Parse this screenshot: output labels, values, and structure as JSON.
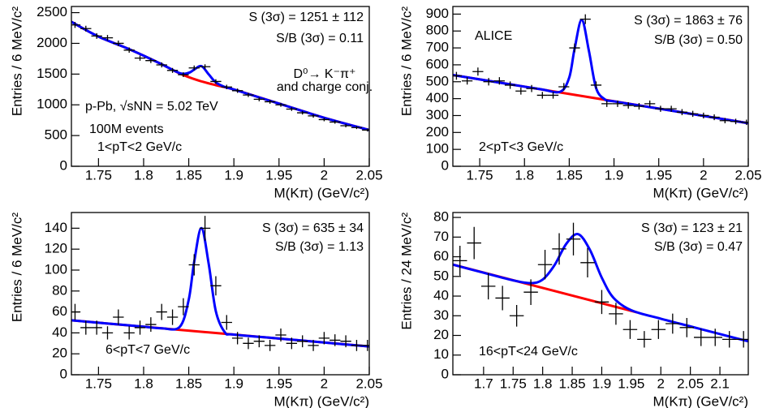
{
  "chart_data": [
    {
      "type": "errorbar",
      "xlabel": "M(Kπ) (GeV/c²)",
      "ylabel": "Entries / 6 MeV/c²",
      "xlim": [
        1.72,
        2.05
      ],
      "xticks": [
        1.75,
        1.8,
        1.85,
        1.9,
        1.95,
        2,
        2.05
      ],
      "ylim": [
        0,
        2600
      ],
      "yticks": [
        0,
        500,
        1000,
        1500,
        2000,
        2500
      ],
      "annotations": [
        "S (3σ) = 1251 ± 112",
        "S/B (3σ) = 0.11",
        "D⁰→ K⁻π⁺",
        "and charge conj.",
        "p-Pb, √sNN = 5.02 TeV",
        "100M events",
        "1<pT<2 GeV/c"
      ],
      "series": [
        {
          "style": "line",
          "color": "#ff0000",
          "x": [
            1.72,
            1.75,
            1.78,
            1.8,
            1.82,
            1.84,
            1.86,
            1.88,
            1.9,
            1.95,
            2.0,
            2.05
          ],
          "values": [
            2350,
            2110,
            1930,
            1800,
            1660,
            1510,
            1400,
            1320,
            1250,
            1020,
            790,
            590
          ]
        },
        {
          "style": "line",
          "color": "#0000ff",
          "x": [
            1.72,
            1.75,
            1.78,
            1.8,
            1.82,
            1.84,
            1.85,
            1.856,
            1.864,
            1.872,
            1.88,
            1.89,
            1.9,
            1.95,
            2.0,
            2.05
          ],
          "values": [
            2350,
            2110,
            1930,
            1800,
            1660,
            1516,
            1521,
            1573,
            1630,
            1498,
            1365,
            1290,
            1250,
            1020,
            790,
            590
          ]
        },
        {
          "style": "errorbar",
          "color": "#000000",
          "x": [
            1.724,
            1.736,
            1.748,
            1.76,
            1.772,
            1.784,
            1.796,
            1.808,
            1.82,
            1.832,
            1.844,
            1.856,
            1.868,
            1.88,
            1.892,
            1.904,
            1.916,
            1.928,
            1.94,
            1.952,
            1.964,
            1.976,
            1.988,
            2.0,
            2.012,
            2.024,
            2.036,
            2.048
          ],
          "values": [
            2300,
            2240,
            2120,
            2090,
            2000,
            1890,
            1760,
            1720,
            1650,
            1560,
            1490,
            1600,
            1620,
            1380,
            1290,
            1230,
            1160,
            1090,
            1050,
            1000,
            930,
            870,
            820,
            760,
            720,
            660,
            630,
            590
          ],
          "errors": [
            48,
            47,
            46,
            46,
            45,
            43,
            42,
            41,
            41,
            40,
            39,
            40,
            40,
            37,
            36,
            35,
            34,
            33,
            32,
            32,
            30,
            29,
            29,
            28,
            27,
            26,
            25,
            24
          ]
        }
      ]
    },
    {
      "type": "errorbar",
      "xlabel": "M(Kπ) (GeV/c²)",
      "ylabel": "Entries / 6 MeV/c²",
      "xlim": [
        1.72,
        2.05
      ],
      "xticks": [
        1.75,
        1.8,
        1.85,
        1.9,
        1.95,
        2,
        2.05
      ],
      "ylim": [
        0,
        945
      ],
      "yticks": [
        0,
        100,
        200,
        300,
        400,
        500,
        600,
        700,
        800,
        900
      ],
      "annotations": [
        "S (3σ) = 1863 ± 76",
        "S/B (3σ) = 0.50",
        "ALICE",
        "2<pT<3 GeV/c"
      ],
      "series": [
        {
          "style": "line",
          "color": "#ff0000",
          "x": [
            1.72,
            2.05
          ],
          "values": [
            540,
            255
          ]
        },
        {
          "style": "line",
          "color": "#0000ff",
          "x": [
            1.72,
            1.75,
            1.78,
            1.8,
            1.82,
            1.84,
            1.85,
            1.856,
            1.864,
            1.872,
            1.88,
            1.89,
            1.9,
            1.95,
            2.0,
            2.05
          ],
          "values": [
            540,
            514,
            488,
            471,
            454,
            441,
            525,
            695,
            866,
            682,
            463,
            395,
            384,
            341,
            298,
            255
          ]
        },
        {
          "style": "errorbar",
          "color": "#000000",
          "x": [
            1.724,
            1.736,
            1.748,
            1.76,
            1.772,
            1.784,
            1.796,
            1.808,
            1.82,
            1.832,
            1.844,
            1.856,
            1.868,
            1.88,
            1.892,
            1.904,
            1.916,
            1.928,
            1.94,
            1.952,
            1.964,
            1.976,
            1.988,
            2.0,
            2.012,
            2.024,
            2.036,
            2.048
          ],
          "values": [
            535,
            505,
            560,
            500,
            505,
            480,
            445,
            460,
            420,
            420,
            470,
            700,
            870,
            480,
            370,
            370,
            360,
            355,
            370,
            340,
            340,
            320,
            310,
            300,
            290,
            270,
            265,
            260
          ],
          "errors": [
            23,
            22,
            24,
            22,
            22,
            22,
            21,
            21,
            20,
            20,
            22,
            26,
            29,
            22,
            19,
            19,
            19,
            19,
            19,
            18,
            18,
            18,
            18,
            17,
            17,
            16,
            16,
            16
          ]
        }
      ]
    },
    {
      "type": "errorbar",
      "xlabel": "M(Kπ) (GeV/c²)",
      "ylabel": "Entries / 6 MeV/c²",
      "xlim": [
        1.72,
        2.05
      ],
      "xticks": [
        1.75,
        1.8,
        1.85,
        1.9,
        1.95,
        2,
        2.05
      ],
      "ylim": [
        0,
        155
      ],
      "yticks": [
        0,
        20,
        40,
        60,
        80,
        100,
        120,
        140
      ],
      "annotations": [
        "S (3σ) = 635 ± 34",
        "S/B (3σ) = 1.13",
        "6<pT<7 GeV/c"
      ],
      "series": [
        {
          "style": "line",
          "color": "#ff0000",
          "x": [
            1.72,
            2.05
          ],
          "values": [
            52,
            27
          ]
        },
        {
          "style": "line",
          "color": "#0000ff",
          "x": [
            1.72,
            1.75,
            1.78,
            1.8,
            1.82,
            1.84,
            1.85,
            1.856,
            1.864,
            1.872,
            1.88,
            1.89,
            1.9,
            1.95,
            2.0,
            2.05
          ],
          "values": [
            52,
            49.7,
            47.5,
            45.9,
            44.4,
            45.7,
            71.8,
            107.7,
            140.1,
            106.5,
            60.7,
            40.6,
            38.4,
            34.6,
            30.8,
            27
          ]
        },
        {
          "style": "errorbar",
          "color": "#000000",
          "x": [
            1.724,
            1.736,
            1.748,
            1.76,
            1.772,
            1.784,
            1.796,
            1.808,
            1.82,
            1.832,
            1.844,
            1.856,
            1.868,
            1.88,
            1.892,
            1.904,
            1.916,
            1.928,
            1.94,
            1.952,
            1.964,
            1.976,
            1.988,
            2.0,
            2.012,
            2.024,
            2.036,
            2.048
          ],
          "values": [
            60,
            45,
            45,
            40,
            55,
            40,
            45,
            48,
            60,
            55,
            65,
            105,
            140,
            85,
            50,
            35,
            30,
            32,
            28,
            38,
            30,
            32,
            28,
            35,
            33,
            32,
            28,
            28
          ],
          "errors": [
            7.7,
            6.7,
            6.7,
            6.3,
            7.4,
            6.3,
            6.7,
            6.9,
            7.7,
            7.4,
            8.1,
            10.2,
            11.8,
            9.2,
            7.1,
            5.9,
            5.5,
            5.7,
            5.3,
            6.2,
            5.5,
            5.7,
            5.3,
            5.9,
            5.7,
            5.7,
            5.3,
            5.3
          ]
        }
      ]
    },
    {
      "type": "errorbar",
      "xlabel": "M(Kπ) (GeV/c²)",
      "ylabel": "Entries / 24 MeV/c²",
      "xlim": [
        1.648,
        2.148
      ],
      "xticks": [
        1.7,
        1.75,
        1.8,
        1.85,
        1.9,
        1.95,
        2,
        2.05,
        2.1
      ],
      "ylim": [
        0,
        82.5
      ],
      "yticks": [
        0,
        10,
        20,
        30,
        40,
        50,
        60,
        70,
        80
      ],
      "annotations": [
        "S (3σ) = 123 ± 21",
        "S/B (3σ) = 0.47",
        "16<pT<24 GeV/c"
      ],
      "series": [
        {
          "style": "line",
          "color": "#ff0000",
          "x": [
            1.648,
            1.96
          ],
          "values": [
            56,
            31.7
          ]
        },
        {
          "style": "line",
          "color": "#0000ff",
          "x": [
            1.648,
            1.7,
            1.75,
            1.78,
            1.8,
            1.82,
            1.84,
            1.86,
            1.88,
            1.9,
            1.92,
            1.95,
            2.0,
            2.05,
            2.1,
            2.148
          ],
          "values": [
            56,
            51.9,
            48.0,
            46.6,
            48.4,
            55.7,
            66.6,
            71.5,
            63.5,
            49.4,
            39.1,
            32.8,
            28.5,
            24.6,
            20.7,
            17
          ]
        },
        {
          "style": "errorbar",
          "color": "#000000",
          "x": [
            1.66,
            1.684,
            1.708,
            1.732,
            1.756,
            1.78,
            1.804,
            1.828,
            1.852,
            1.876,
            1.9,
            1.924,
            1.948,
            1.972,
            1.996,
            2.02,
            2.044,
            2.068,
            2.092,
            2.116,
            2.14
          ],
          "values": [
            58,
            67,
            45,
            39,
            30,
            42,
            56,
            64,
            69,
            57,
            37,
            31,
            23,
            18,
            23,
            26,
            24,
            19,
            19,
            18,
            18
          ],
          "errors": [
            7.6,
            8.2,
            6.7,
            6.2,
            5.5,
            6.5,
            7.5,
            8,
            8.3,
            7.5,
            6.1,
            5.6,
            4.8,
            4.2,
            4.8,
            5.1,
            4.9,
            4.4,
            4.4,
            4.2,
            4.2
          ]
        }
      ]
    }
  ]
}
